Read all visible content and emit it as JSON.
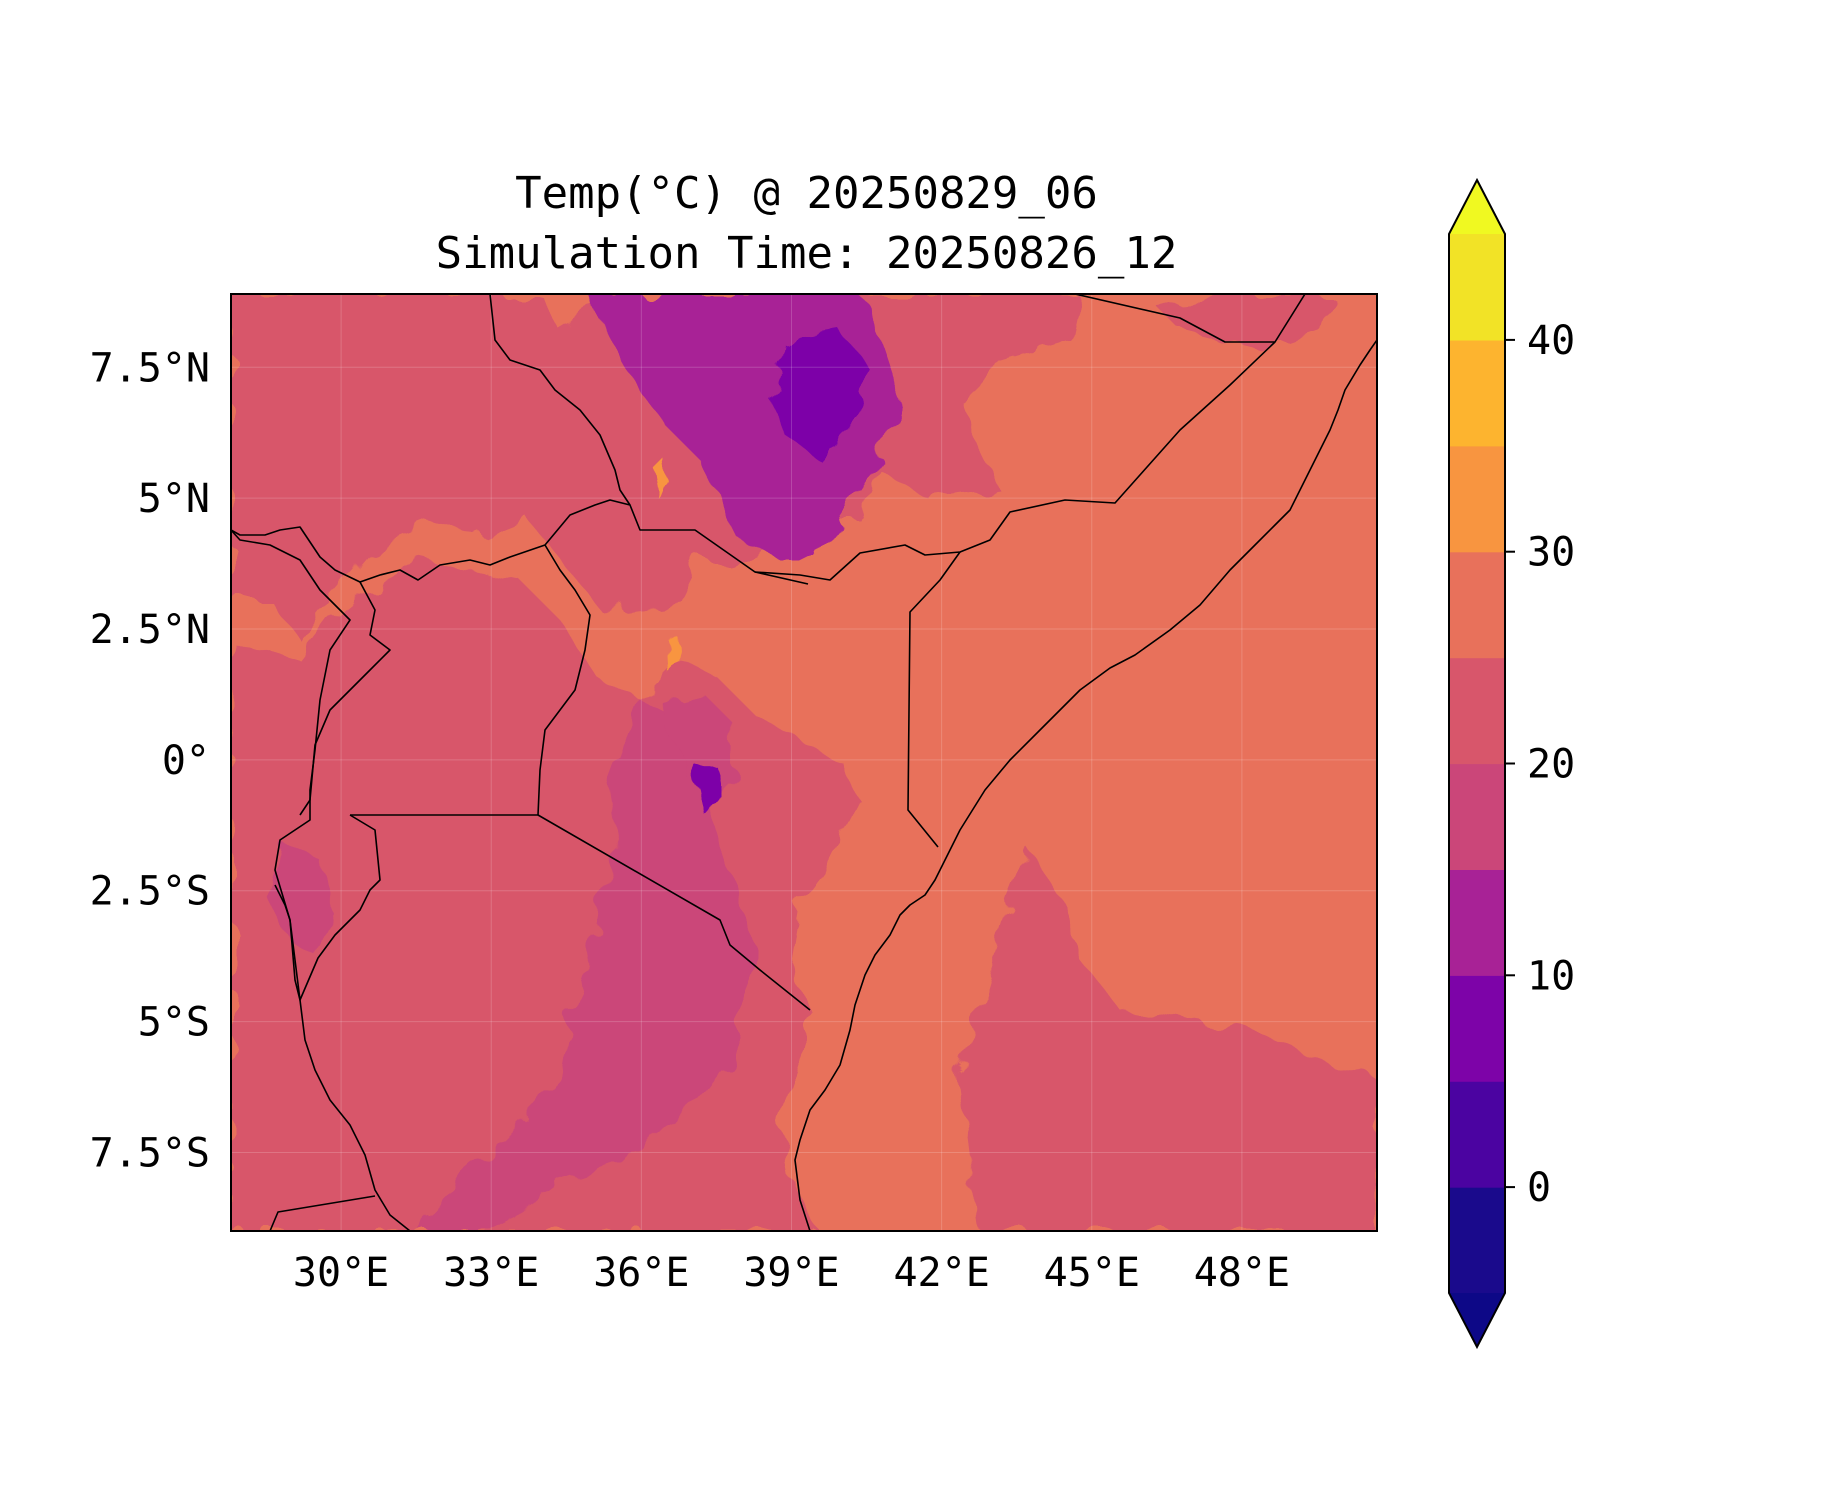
{
  "title": {
    "line1": "Temp(°C) @ 20250829_06",
    "line2": "Simulation Time: 20250826_12"
  },
  "map": {
    "lon_range": [
      27.8,
      50.7
    ],
    "lat_range": [
      -9.0,
      8.9
    ],
    "lon_ticks": [
      {
        "value": 30,
        "label": "30°E"
      },
      {
        "value": 33,
        "label": "33°E"
      },
      {
        "value": 36,
        "label": "36°E"
      },
      {
        "value": 39,
        "label": "39°E"
      },
      {
        "value": 42,
        "label": "42°E"
      },
      {
        "value": 45,
        "label": "45°E"
      },
      {
        "value": 48,
        "label": "48°E"
      }
    ],
    "lat_ticks": [
      {
        "value": 7.5,
        "label": "7.5°N"
      },
      {
        "value": 5,
        "label": "5°N"
      },
      {
        "value": 2.5,
        "label": "2.5°N"
      },
      {
        "value": 0,
        "label": "0°"
      },
      {
        "value": -2.5,
        "label": "2.5°S"
      },
      {
        "value": -5,
        "label": "5°S"
      },
      {
        "value": -7.5,
        "label": "7.5°S"
      }
    ],
    "gridlines": true
  },
  "colorbar": {
    "levels": [
      -5,
      0,
      5,
      10,
      15,
      20,
      25,
      30,
      35,
      40,
      45
    ],
    "colors": [
      "#1a0a8c",
      "#4b03a1",
      "#7d03a8",
      "#a82296",
      "#cb4679",
      "#d8566b",
      "#e8715b",
      "#f89540",
      "#fdb42f",
      "#f2e326"
    ],
    "under_color": "#0d0887",
    "over_color": "#f0f921",
    "extend": "both",
    "ticks": [
      {
        "value": 0,
        "label": "0"
      },
      {
        "value": 10,
        "label": "10"
      },
      {
        "value": 20,
        "label": "20"
      },
      {
        "value": 30,
        "label": "30"
      },
      {
        "value": 40,
        "label": "40"
      }
    ]
  },
  "chart_data": {
    "type": "heatmap",
    "variable": "Temp(°C)",
    "colormap": "plasma",
    "value_range_estimate": [
      7,
      33
    ],
    "dominant_values": {
      "ocean_and_lowlands": 27.5,
      "plateaus": 22.5,
      "highlands": 17.5,
      "ethiopian_peaks": 12.5
    }
  }
}
